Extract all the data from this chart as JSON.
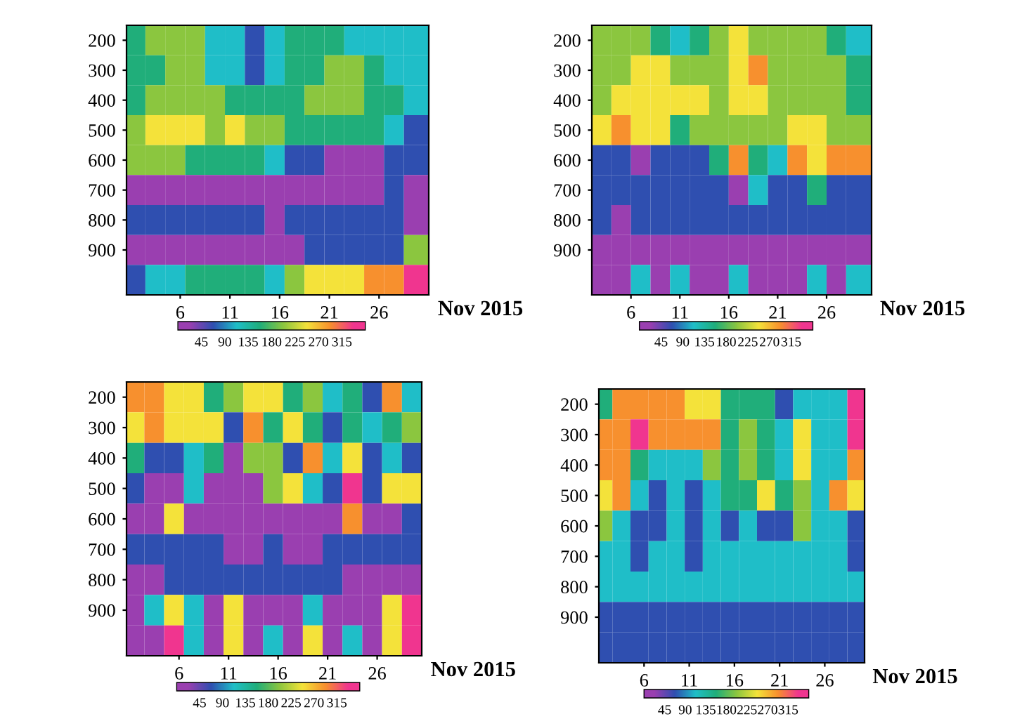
{
  "chart_data": [
    {
      "type": "heatmap",
      "xlabel": "Nov 2015",
      "x": [
        1.5,
        3.5,
        5.5,
        7.5,
        9.5,
        11.5,
        13.5,
        15.5,
        17.5,
        19.5,
        21.5,
        23.5,
        25.5,
        27.5,
        29.5
      ],
      "xlim": [
        0.6,
        31
      ],
      "xticks": [
        6,
        11,
        16,
        21,
        26
      ],
      "y_categories": [
        "200",
        "300",
        "400",
        "500",
        "600",
        "700",
        "800",
        "900",
        null
      ],
      "cells": [
        [
          158,
          202,
          202,
          202,
          112,
          112,
          68,
          112,
          158,
          158,
          158,
          112,
          112,
          112,
          112
        ],
        [
          158,
          158,
          202,
          202,
          112,
          112,
          68,
          112,
          158,
          158,
          202,
          202,
          158,
          112,
          112
        ],
        [
          158,
          202,
          202,
          202,
          202,
          158,
          158,
          158,
          158,
          202,
          202,
          202,
          158,
          158,
          112
        ],
        [
          202,
          248,
          248,
          248,
          202,
          248,
          202,
          202,
          158,
          158,
          158,
          158,
          158,
          112,
          68
        ],
        [
          202,
          202,
          202,
          158,
          158,
          158,
          158,
          112,
          68,
          68,
          22,
          22,
          22,
          68,
          68
        ],
        [
          22,
          22,
          22,
          22,
          22,
          22,
          22,
          22,
          22,
          22,
          22,
          22,
          22,
          68,
          22
        ],
        [
          68,
          68,
          68,
          68,
          68,
          68,
          68,
          22,
          68,
          68,
          68,
          68,
          68,
          68,
          22
        ],
        [
          22,
          22,
          22,
          22,
          22,
          22,
          22,
          22,
          22,
          68,
          68,
          68,
          68,
          68,
          202
        ],
        [
          68,
          112,
          112,
          158,
          158,
          158,
          158,
          112,
          202,
          248,
          248,
          248,
          292,
          292,
          338
        ]
      ],
      "clim": [
        0,
        360
      ],
      "cticks": [
        45,
        90,
        135,
        180,
        225,
        270,
        315
      ],
      "colors": [
        "#9a3fb0",
        "#2f4fb0",
        "#1fbfc8",
        "#1fae7a",
        "#8cc63f",
        "#f4e33a",
        "#f7902e",
        "#f0358f"
      ]
    },
    {
      "type": "heatmap",
      "xlabel": "Nov 2015",
      "x": [
        3,
        5,
        7,
        9,
        11,
        13,
        15,
        17,
        19,
        21,
        23,
        25,
        27,
        29
      ],
      "xlim": [
        2,
        30.6
      ],
      "xticks": [
        6,
        11,
        16,
        21,
        26
      ],
      "y_categories": [
        "200",
        "300",
        "400",
        "500",
        "600",
        "700",
        "800",
        "900",
        null
      ],
      "cells": [
        [
          202,
          202,
          202,
          158,
          112,
          158,
          202,
          248,
          202,
          202,
          202,
          202,
          158,
          112
        ],
        [
          202,
          202,
          248,
          248,
          202,
          202,
          202,
          248,
          292,
          202,
          202,
          202,
          202,
          158
        ],
        [
          202,
          248,
          248,
          248,
          248,
          248,
          202,
          248,
          248,
          202,
          202,
          202,
          202,
          158
        ],
        [
          248,
          292,
          248,
          248,
          158,
          202,
          202,
          202,
          202,
          202,
          248,
          248,
          202,
          202
        ],
        [
          68,
          68,
          22,
          68,
          68,
          68,
          158,
          292,
          158,
          112,
          292,
          248,
          292,
          292
        ],
        [
          68,
          68,
          68,
          68,
          68,
          68,
          68,
          22,
          112,
          68,
          68,
          158,
          68,
          68
        ],
        [
          68,
          22,
          68,
          68,
          68,
          68,
          68,
          68,
          68,
          68,
          68,
          68,
          68,
          68
        ],
        [
          22,
          22,
          22,
          22,
          22,
          22,
          22,
          22,
          22,
          22,
          22,
          22,
          22,
          22
        ],
        [
          22,
          22,
          112,
          22,
          112,
          22,
          22,
          112,
          22,
          22,
          22,
          112,
          22,
          112
        ]
      ],
      "clim": [
        0,
        360
      ],
      "cticks": [
        45,
        90,
        135,
        180,
        225,
        270,
        315
      ],
      "colors": [
        "#9a3fb0",
        "#2f4fb0",
        "#1fbfc8",
        "#1fae7a",
        "#8cc63f",
        "#f4e33a",
        "#f7902e",
        "#f0358f"
      ]
    },
    {
      "type": "heatmap",
      "xlabel": "Nov 2015",
      "x": [
        1.5,
        3.5,
        5.5,
        7.5,
        9.5,
        11.5,
        13.5,
        15.5,
        17.5,
        19.5,
        21.5,
        23.5,
        25.5,
        27.5,
        29.5
      ],
      "xlim": [
        0.7,
        30.5
      ],
      "xticks": [
        6,
        11,
        16,
        21,
        26
      ],
      "y_categories": [
        "200",
        "300",
        "400",
        "500",
        "600",
        "700",
        "800",
        "900",
        null
      ],
      "cells": [
        [
          292,
          292,
          248,
          248,
          158,
          202,
          248,
          248,
          158,
          202,
          112,
          158,
          68,
          292,
          112
        ],
        [
          248,
          292,
          248,
          248,
          248,
          68,
          292,
          158,
          248,
          158,
          68,
          158,
          112,
          158,
          202
        ],
        [
          158,
          68,
          68,
          112,
          158,
          22,
          202,
          202,
          68,
          292,
          112,
          248,
          68,
          112,
          68
        ],
        [
          68,
          22,
          22,
          112,
          22,
          22,
          22,
          202,
          248,
          112,
          68,
          338,
          68,
          248,
          248
        ],
        [
          22,
          22,
          248,
          22,
          22,
          22,
          22,
          22,
          22,
          22,
          22,
          292,
          22,
          22,
          68
        ],
        [
          68,
          68,
          68,
          68,
          68,
          22,
          22,
          68,
          22,
          22,
          68,
          68,
          68,
          68,
          68
        ],
        [
          22,
          22,
          68,
          68,
          68,
          68,
          68,
          68,
          68,
          68,
          68,
          22,
          22,
          22,
          22
        ],
        [
          22,
          112,
          248,
          112,
          22,
          248,
          22,
          22,
          22,
          112,
          22,
          22,
          22,
          248,
          338
        ],
        [
          22,
          22,
          338,
          112,
          22,
          248,
          22,
          112,
          22,
          248,
          22,
          112,
          22,
          248,
          338
        ]
      ],
      "clim": [
        0,
        360
      ],
      "cticks": [
        45,
        90,
        135,
        180,
        225,
        270,
        315
      ],
      "colors": [
        "#9a3fb0",
        "#2f4fb0",
        "#1fbfc8",
        "#1fae7a",
        "#8cc63f",
        "#f4e33a",
        "#f7902e",
        "#f0358f"
      ]
    },
    {
      "type": "heatmap",
      "xlabel": "Nov 2015",
      "x": [
        1.5,
        3.5,
        5.5,
        7.5,
        9.5,
        11.5,
        13.5,
        15.5,
        17.5,
        19.5,
        21.5,
        23.5,
        25.5,
        27.5,
        29.5
      ],
      "xlim": [
        1,
        30.4
      ],
      "xticks": [
        6,
        11,
        16,
        21,
        26
      ],
      "y_categories": [
        "200",
        "300",
        "400",
        "500",
        "600",
        "700",
        "800",
        "900",
        null
      ],
      "cells": [
        [
          158,
          292,
          292,
          292,
          292,
          248,
          248,
          158,
          158,
          158,
          68,
          112,
          112,
          112,
          338
        ],
        [
          292,
          292,
          338,
          292,
          292,
          292,
          292,
          158,
          202,
          158,
          112,
          248,
          112,
          112,
          338
        ],
        [
          292,
          292,
          158,
          112,
          112,
          112,
          202,
          158,
          202,
          158,
          112,
          248,
          112,
          112,
          292
        ],
        [
          248,
          292,
          112,
          68,
          112,
          68,
          112,
          158,
          158,
          248,
          158,
          202,
          112,
          292,
          248
        ],
        [
          202,
          112,
          68,
          68,
          112,
          68,
          112,
          68,
          112,
          68,
          68,
          202,
          112,
          112,
          68
        ],
        [
          112,
          112,
          68,
          112,
          112,
          68,
          112,
          112,
          112,
          112,
          112,
          112,
          112,
          112,
          68
        ],
        [
          112,
          112,
          112,
          112,
          112,
          112,
          112,
          112,
          112,
          112,
          112,
          112,
          112,
          112,
          112
        ],
        [
          68,
          68,
          68,
          68,
          68,
          68,
          68,
          68,
          68,
          68,
          68,
          68,
          68,
          68,
          68
        ],
        [
          68,
          68,
          68,
          68,
          68,
          68,
          68,
          68,
          68,
          68,
          68,
          68,
          68,
          68,
          68
        ]
      ],
      "clim": [
        0,
        360
      ],
      "cticks": [
        45,
        90,
        135,
        180,
        225,
        270,
        315
      ],
      "colors": [
        "#9a3fb0",
        "#2f4fb0",
        "#1fbfc8",
        "#1fae7a",
        "#8cc63f",
        "#f4e33a",
        "#f7902e",
        "#f0358f"
      ]
    }
  ]
}
